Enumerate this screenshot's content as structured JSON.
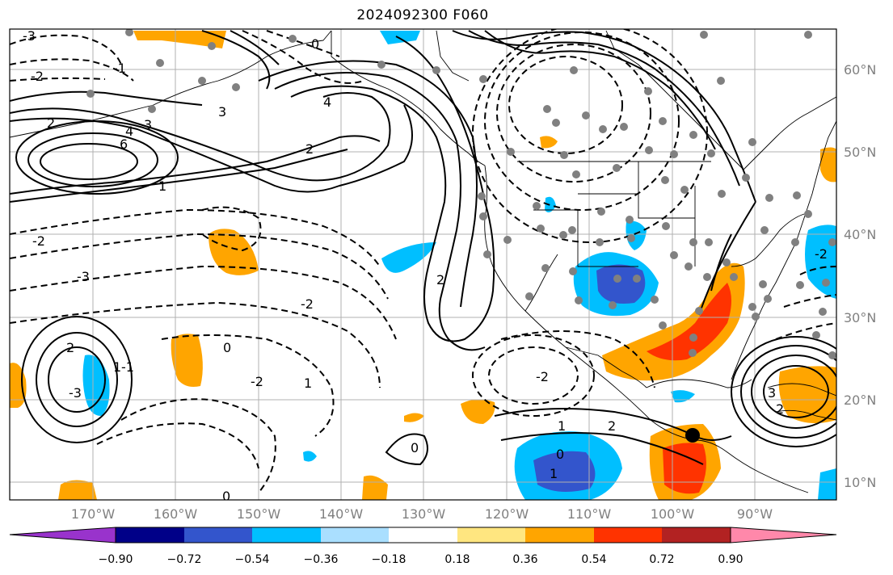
{
  "title": "2024092300 F060",
  "map": {
    "lon_ticks": [
      "170°W",
      "160°W",
      "150°W",
      "140°W",
      "130°W",
      "120°W",
      "110°W",
      "100°W",
      "90°W"
    ],
    "lat_ticks": [
      "60°N",
      "50°N",
      "40°N",
      "30°N",
      "20°N",
      "10°N"
    ],
    "contour_labels": [
      "-3",
      "-2",
      "-1",
      "0",
      "1",
      "2",
      "3",
      "4",
      "6",
      "-2",
      "-3",
      "-2",
      "0",
      "-2",
      "1",
      "2",
      "3",
      "4",
      "2",
      "1",
      "-1",
      "-2",
      "-3",
      "2",
      "0",
      "-2",
      "1",
      "2",
      "0",
      "1",
      "2",
      "3",
      "0"
    ]
  },
  "colorbar": {
    "ticks": [
      "−0.90",
      "−0.72",
      "−0.54",
      "−0.36",
      "−0.18",
      "0.18",
      "0.36",
      "0.54",
      "0.72",
      "0.90"
    ],
    "colors": [
      "#9933cc",
      "#000088",
      "#3355cc",
      "#00bfff",
      "#aadfff",
      "#ffffff",
      "#ffe680",
      "#ffa500",
      "#ff3300",
      "#b22222",
      "#ff88aa"
    ]
  }
}
